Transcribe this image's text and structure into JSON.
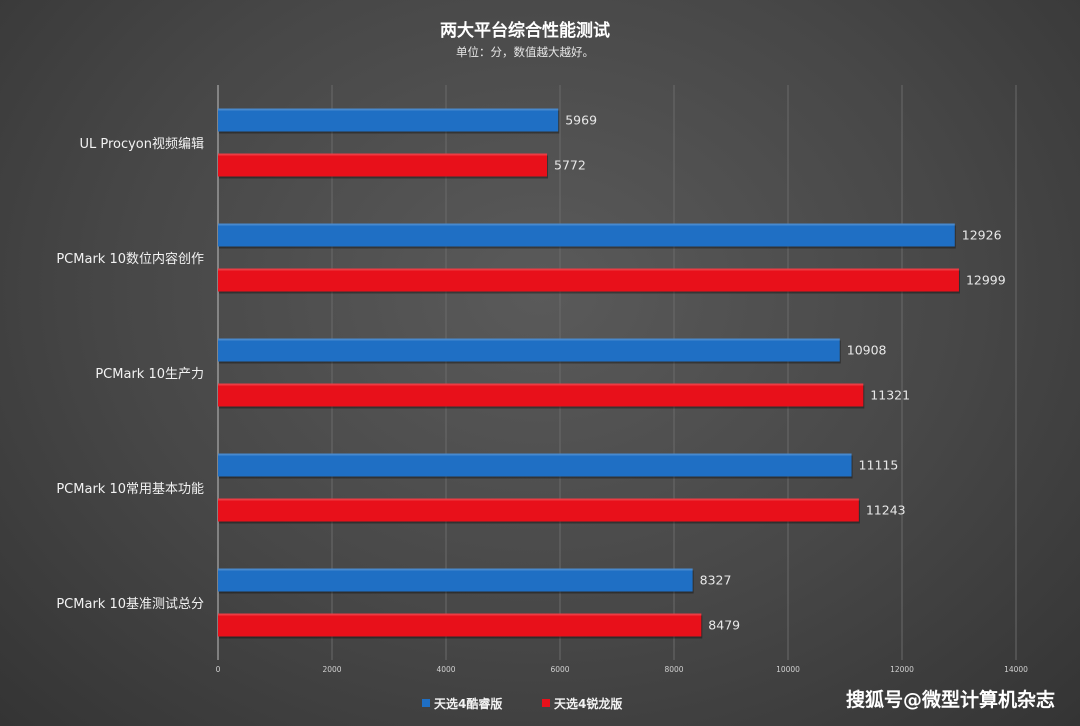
{
  "chart_data": {
    "type": "bar",
    "orientation": "horizontal",
    "title": "两大平台综合性能测试",
    "subtitle": "单位：分，数值越大越好。",
    "categories": [
      "UL Procyon视频编辑",
      "PCMark 10数位内容创作",
      "PCMark 10生产力",
      "PCMark 10常用基本功能",
      "PCMark 10基准测试总分"
    ],
    "series": [
      {
        "name": "天选4酷睿版",
        "color": "#1f6fc4",
        "values": [
          5969,
          12926,
          10908,
          11115,
          8327
        ]
      },
      {
        "name": "天选4锐龙版",
        "color": "#e8101a",
        "values": [
          5772,
          12999,
          11321,
          11243,
          8479
        ]
      }
    ],
    "xlim": [
      0,
      14000
    ],
    "xticks": [
      "0",
      "2000",
      "4000",
      "6000",
      "8000",
      "10000",
      "12000",
      "14000"
    ],
    "grid": true,
    "legend_position": "bottom"
  },
  "watermark": "搜狐号@微型计算机杂志"
}
